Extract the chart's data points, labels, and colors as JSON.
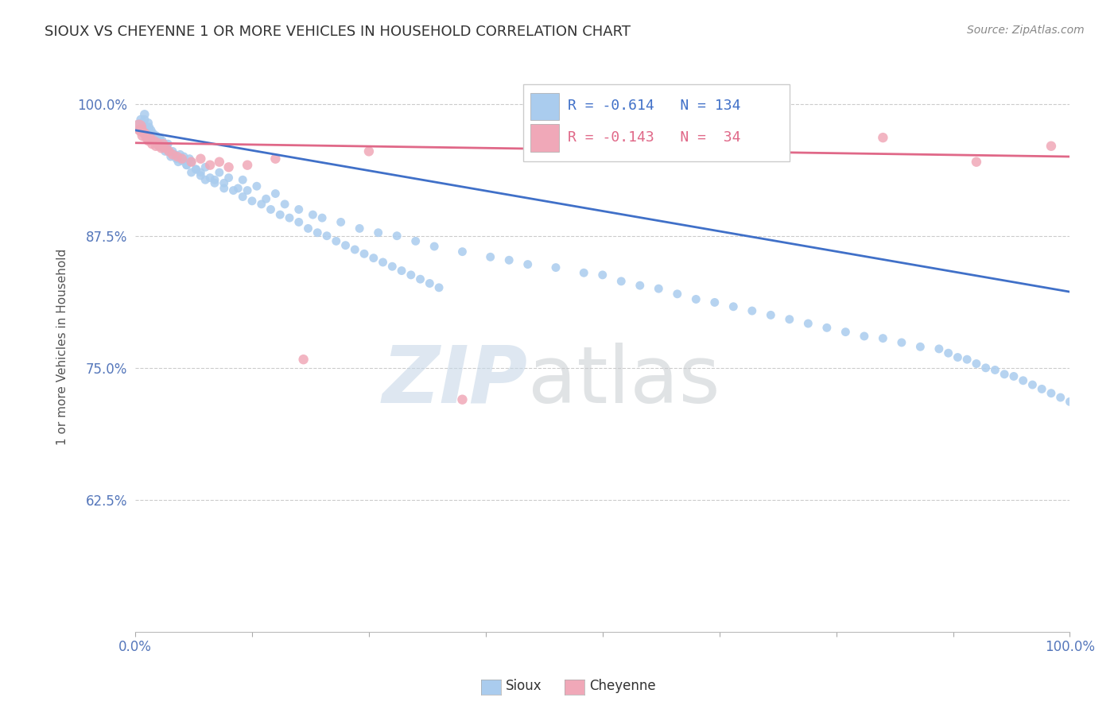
{
  "title": "SIOUX VS CHEYENNE 1 OR MORE VEHICLES IN HOUSEHOLD CORRELATION CHART",
  "source": "Source: ZipAtlas.com",
  "ylabel": "1 or more Vehicles in Household",
  "xlim": [
    0.0,
    1.0
  ],
  "ylim": [
    0.5,
    1.04
  ],
  "yticks": [
    0.625,
    0.75,
    0.875,
    1.0
  ],
  "ytick_labels": [
    "62.5%",
    "75.0%",
    "87.5%",
    "100.0%"
  ],
  "legend_r_sioux": "-0.614",
  "legend_n_sioux": "134",
  "legend_r_cheyenne": "-0.143",
  "legend_n_cheyenne": "34",
  "sioux_color": "#aaccee",
  "cheyenne_color": "#f0a8b8",
  "sioux_line_color": "#4070c8",
  "cheyenne_line_color": "#e06888",
  "tick_label_color": "#5577bb",
  "title_color": "#333333",
  "source_color": "#888888",
  "ylabel_color": "#555555",
  "watermark_zip_color": "#c8d8e8",
  "watermark_atlas_color": "#c8ccd0",
  "background_color": "#ffffff",
  "grid_color": "#cccccc",
  "sioux_trend_start": 0.975,
  "sioux_trend_end": 0.822,
  "cheyenne_trend_start": 0.963,
  "cheyenne_trend_end": 0.95,
  "sioux_x": [
    0.004,
    0.006,
    0.008,
    0.01,
    0.01,
    0.012,
    0.013,
    0.014,
    0.015,
    0.016,
    0.017,
    0.018,
    0.019,
    0.02,
    0.021,
    0.022,
    0.023,
    0.024,
    0.025,
    0.026,
    0.027,
    0.028,
    0.029,
    0.03,
    0.031,
    0.032,
    0.033,
    0.034,
    0.035,
    0.036,
    0.038,
    0.04,
    0.042,
    0.044,
    0.046,
    0.048,
    0.05,
    0.052,
    0.055,
    0.058,
    0.06,
    0.065,
    0.07,
    0.075,
    0.08,
    0.085,
    0.09,
    0.095,
    0.1,
    0.11,
    0.115,
    0.12,
    0.13,
    0.14,
    0.15,
    0.16,
    0.175,
    0.19,
    0.2,
    0.22,
    0.24,
    0.26,
    0.28,
    0.3,
    0.32,
    0.35,
    0.38,
    0.4,
    0.42,
    0.45,
    0.48,
    0.5,
    0.52,
    0.54,
    0.56,
    0.58,
    0.6,
    0.62,
    0.64,
    0.66,
    0.68,
    0.7,
    0.72,
    0.74,
    0.76,
    0.78,
    0.8,
    0.82,
    0.84,
    0.86,
    0.87,
    0.88,
    0.89,
    0.9,
    0.91,
    0.92,
    0.93,
    0.94,
    0.95,
    0.96,
    0.97,
    0.98,
    0.99,
    1.0,
    0.055,
    0.06,
    0.065,
    0.07,
    0.075,
    0.085,
    0.095,
    0.105,
    0.115,
    0.125,
    0.135,
    0.145,
    0.155,
    0.165,
    0.175,
    0.185,
    0.195,
    0.205,
    0.215,
    0.225,
    0.235,
    0.245,
    0.255,
    0.265,
    0.275,
    0.285,
    0.295,
    0.305,
    0.315,
    0.325
  ],
  "sioux_y": [
    0.98,
    0.985,
    0.975,
    0.985,
    0.99,
    0.978,
    0.975,
    0.982,
    0.978,
    0.97,
    0.975,
    0.968,
    0.972,
    0.968,
    0.965,
    0.97,
    0.968,
    0.965,
    0.96,
    0.968,
    0.962,
    0.96,
    0.965,
    0.958,
    0.96,
    0.955,
    0.958,
    0.96,
    0.962,
    0.955,
    0.95,
    0.955,
    0.952,
    0.948,
    0.945,
    0.952,
    0.946,
    0.95,
    0.942,
    0.948,
    0.945,
    0.938,
    0.935,
    0.94,
    0.93,
    0.928,
    0.935,
    0.925,
    0.93,
    0.92,
    0.928,
    0.918,
    0.922,
    0.91,
    0.915,
    0.905,
    0.9,
    0.895,
    0.892,
    0.888,
    0.882,
    0.878,
    0.875,
    0.87,
    0.865,
    0.86,
    0.855,
    0.852,
    0.848,
    0.845,
    0.84,
    0.838,
    0.832,
    0.828,
    0.825,
    0.82,
    0.815,
    0.812,
    0.808,
    0.804,
    0.8,
    0.796,
    0.792,
    0.788,
    0.784,
    0.78,
    0.778,
    0.774,
    0.77,
    0.768,
    0.764,
    0.76,
    0.758,
    0.754,
    0.75,
    0.748,
    0.744,
    0.742,
    0.738,
    0.734,
    0.73,
    0.726,
    0.722,
    0.718,
    0.942,
    0.935,
    0.938,
    0.932,
    0.928,
    0.925,
    0.92,
    0.918,
    0.912,
    0.908,
    0.905,
    0.9,
    0.895,
    0.892,
    0.888,
    0.882,
    0.878,
    0.875,
    0.87,
    0.866,
    0.862,
    0.858,
    0.854,
    0.85,
    0.846,
    0.842,
    0.838,
    0.834,
    0.83,
    0.826
  ],
  "sioux_sizes": [
    100,
    70,
    65,
    65,
    70,
    65,
    62,
    62,
    62,
    62,
    62,
    62,
    62,
    62,
    62,
    62,
    62,
    62,
    62,
    62,
    62,
    62,
    62,
    62,
    62,
    62,
    62,
    62,
    62,
    62,
    62,
    62,
    62,
    62,
    62,
    62,
    62,
    62,
    62,
    62,
    62,
    62,
    62,
    62,
    62,
    62,
    62,
    62,
    62,
    62,
    62,
    62,
    62,
    62,
    62,
    62,
    62,
    62,
    62,
    62,
    62,
    62,
    62,
    62,
    62,
    62,
    62,
    62,
    62,
    62,
    62,
    62,
    62,
    62,
    62,
    62,
    62,
    62,
    62,
    62,
    62,
    62,
    62,
    62,
    62,
    62,
    62,
    62,
    62,
    62,
    62,
    62,
    62,
    62,
    62,
    62,
    62,
    62,
    62,
    62,
    62,
    62,
    62,
    62,
    62,
    62,
    62,
    62,
    62,
    62,
    62,
    62,
    62,
    62,
    62,
    62,
    62,
    62,
    62,
    62,
    62,
    62,
    62,
    62,
    62,
    62,
    62,
    62,
    62,
    62,
    62,
    62,
    62,
    62
  ],
  "cheyenne_x": [
    0.004,
    0.006,
    0.008,
    0.01,
    0.012,
    0.014,
    0.016,
    0.018,
    0.02,
    0.022,
    0.024,
    0.026,
    0.028,
    0.03,
    0.033,
    0.036,
    0.04,
    0.045,
    0.05,
    0.06,
    0.07,
    0.08,
    0.09,
    0.1,
    0.12,
    0.15,
    0.18,
    0.25,
    0.35,
    0.5,
    0.65,
    0.8,
    0.9,
    0.98
  ],
  "cheyenne_y": [
    0.978,
    0.975,
    0.97,
    0.972,
    0.968,
    0.965,
    0.968,
    0.962,
    0.965,
    0.96,
    0.963,
    0.96,
    0.958,
    0.962,
    0.958,
    0.955,
    0.952,
    0.95,
    0.948,
    0.945,
    0.948,
    0.942,
    0.945,
    0.94,
    0.942,
    0.948,
    0.758,
    0.955,
    0.72,
    0.958,
    0.952,
    0.968,
    0.945,
    0.96
  ],
  "cheyenne_sizes": [
    180,
    120,
    100,
    90,
    85,
    80,
    80,
    80,
    80,
    80,
    80,
    80,
    80,
    80,
    80,
    80,
    80,
    80,
    80,
    80,
    80,
    80,
    80,
    80,
    80,
    80,
    80,
    80,
    80,
    80,
    80,
    80,
    80,
    80
  ]
}
